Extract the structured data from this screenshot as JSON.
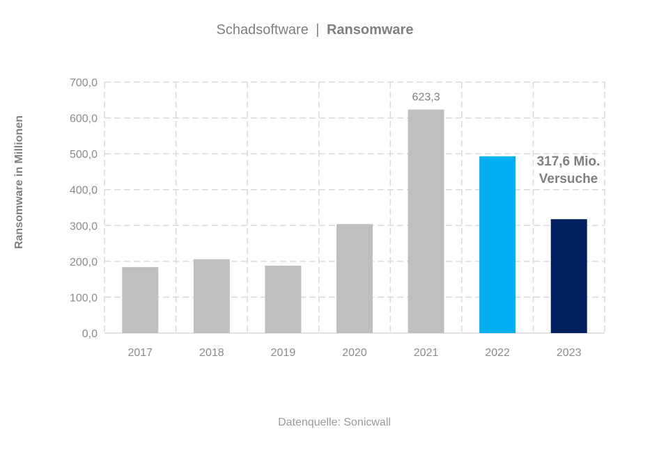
{
  "chart_data": {
    "type": "bar",
    "title_prefix": "Schadsoftware",
    "title_separator": "|",
    "title_main": "Ransomware",
    "ylabel": "Ransomware in Millionen",
    "xlabel": "",
    "categories": [
      "2017",
      "2018",
      "2019",
      "2020",
      "2021",
      "2022",
      "2023"
    ],
    "values": [
      184,
      206,
      188,
      304,
      623.3,
      493,
      317.6
    ],
    "bar_colors": [
      "#bfbfbf",
      "#bfbfbf",
      "#bfbfbf",
      "#bfbfbf",
      "#bfbfbf",
      "#00b0f0",
      "#002060"
    ],
    "ylim": [
      0,
      700
    ],
    "yticks": [
      "0,0",
      "100,0",
      "200,0",
      "300,0",
      "400,0",
      "500,0",
      "600,0",
      "700,0"
    ],
    "data_labels": [
      {
        "category": "2021",
        "text": "623,3"
      }
    ],
    "annotation": {
      "line1": "317,6 Mio.",
      "line2": "Versuche"
    },
    "grid": true,
    "grid_style": "dashed",
    "source": "Datenquelle: Sonicwall"
  }
}
